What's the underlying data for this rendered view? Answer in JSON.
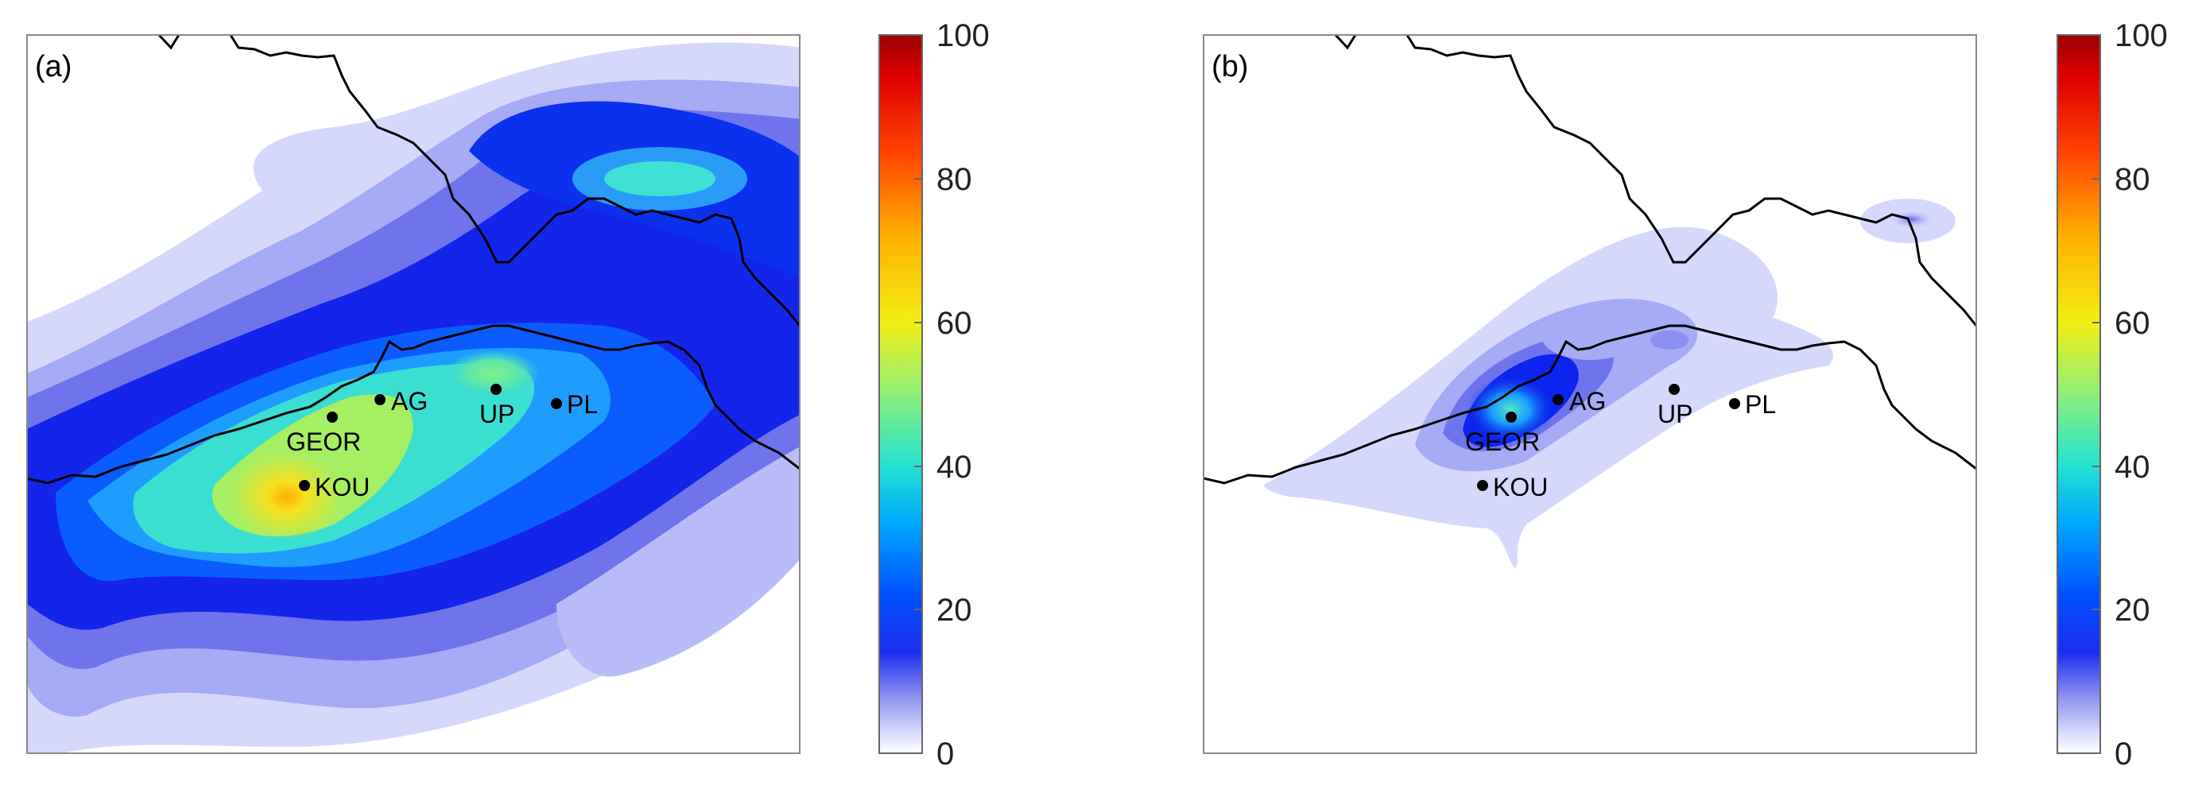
{
  "panels": [
    {
      "label": "(a)",
      "stations": [
        {
          "name": "GEOR"
        },
        {
          "name": "AG"
        },
        {
          "name": "UP"
        },
        {
          "name": "PL"
        },
        {
          "name": "KOU"
        }
      ]
    },
    {
      "label": "(b)",
      "stations": [
        {
          "name": "GEOR"
        },
        {
          "name": "AG"
        },
        {
          "name": "UP"
        },
        {
          "name": "PL"
        },
        {
          "name": "KOU"
        }
      ]
    }
  ],
  "colorbar": {
    "ticks": [
      "0",
      "20",
      "40",
      "60",
      "80",
      "100"
    ],
    "range": [
      0,
      100
    ],
    "colormap": "jet"
  },
  "colors": {
    "background": "#ffffff",
    "border": "#000000",
    "cmap_light": "#d6d8fb",
    "cmap_blue": "#0b1fe8",
    "cmap_cyan": "#27dcdc",
    "cmap_yellow": "#f0e21a",
    "cmap_orange": "#ff9400",
    "cmap_red": "#a00000"
  }
}
